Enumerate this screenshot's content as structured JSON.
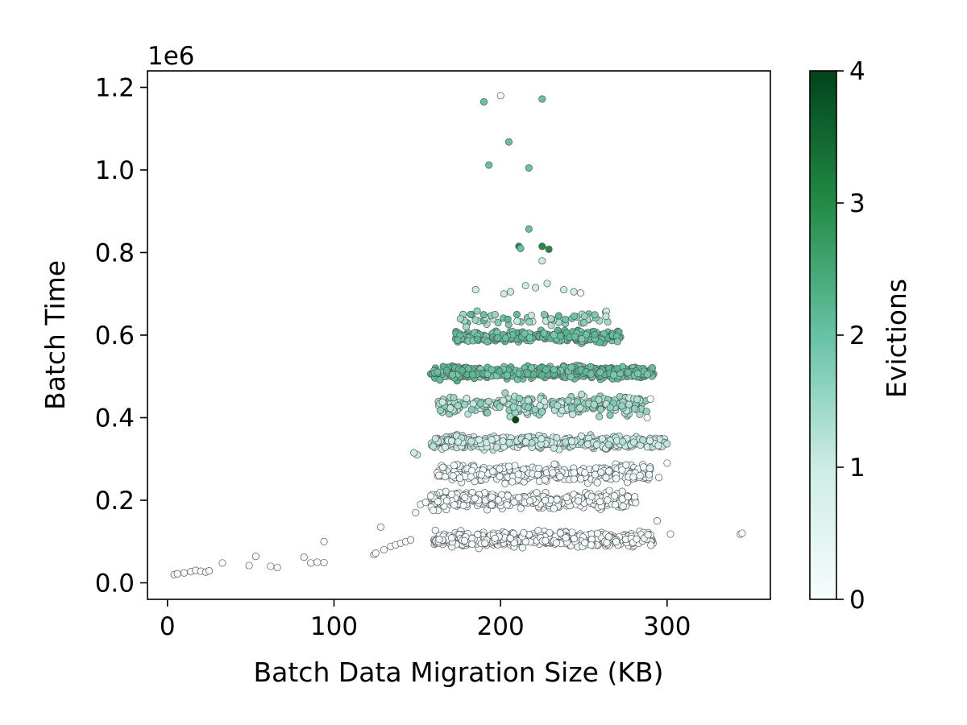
{
  "chart_data": {
    "type": "scatter",
    "title": "",
    "xlabel": "Batch Data Migration Size (KB)",
    "ylabel": "Batch Time",
    "y_offset_label": "1e6",
    "xlim": [
      -12,
      362
    ],
    "ylim": [
      -40000,
      1240000
    ],
    "x_ticks": [
      0,
      100,
      200,
      300
    ],
    "x_tick_labels": [
      "0",
      "100",
      "200",
      "300"
    ],
    "y_ticks": [
      0,
      200000,
      400000,
      600000,
      800000,
      1000000,
      1200000
    ],
    "y_tick_labels": [
      "0.0",
      "0.2",
      "0.4",
      "0.6",
      "0.8",
      "1.0",
      "1.2"
    ],
    "grid": false,
    "colorbar": {
      "label": "Evictions",
      "range": [
        0,
        4
      ],
      "ticks": [
        0,
        1,
        2,
        3,
        4
      ],
      "tick_labels": [
        "0",
        "1",
        "2",
        "3",
        "4"
      ],
      "colors": [
        "#f7fcfd",
        "#ccece6",
        "#66c2a4",
        "#238b45",
        "#00441b"
      ]
    },
    "marker_edge_color": "#555555",
    "point_columns": [
      "x",
      "y",
      "evictions"
    ],
    "points": [
      [
        4,
        20000,
        0
      ],
      [
        6,
        22000,
        0
      ],
      [
        10,
        24000,
        0
      ],
      [
        14,
        27000,
        0
      ],
      [
        17,
        30000,
        0
      ],
      [
        20,
        28000,
        0
      ],
      [
        23,
        26000,
        0
      ],
      [
        25,
        29000,
        0
      ],
      [
        33,
        48000,
        0
      ],
      [
        49,
        42000,
        0
      ],
      [
        53,
        64000,
        0
      ],
      [
        62,
        40000,
        0
      ],
      [
        66,
        37000,
        0
      ],
      [
        82,
        62000,
        0
      ],
      [
        86,
        48000,
        0
      ],
      [
        90,
        50000,
        0
      ],
      [
        94,
        49000,
        0
      ],
      [
        94,
        100000,
        0
      ],
      [
        124,
        68000,
        0
      ],
      [
        125,
        72000,
        0
      ],
      [
        128,
        135000,
        0
      ],
      [
        130,
        80000,
        0
      ],
      [
        134,
        88000,
        0
      ],
      [
        137,
        92000,
        0
      ],
      [
        140,
        96000,
        0
      ],
      [
        143,
        100000,
        0
      ],
      [
        146,
        104000,
        0
      ],
      [
        149,
        170000,
        0
      ],
      [
        152,
        190000,
        0
      ],
      [
        155,
        195000,
        0
      ],
      [
        158,
        210000,
        0
      ],
      [
        150,
        310000,
        1
      ],
      [
        148,
        315000,
        1
      ],
      [
        344,
        118000,
        0
      ],
      [
        345,
        120000,
        0
      ],
      [
        302,
        118000,
        0
      ],
      [
        300,
        290000,
        0
      ],
      [
        295,
        255000,
        0
      ],
      [
        294,
        150000,
        0
      ],
      [
        290,
        445000,
        0
      ],
      [
        288,
        400000,
        0
      ],
      [
        190,
        1165000,
        2
      ],
      [
        200,
        1180000,
        0
      ],
      [
        225,
        1172000,
        2
      ],
      [
        205,
        1068000,
        2
      ],
      [
        193,
        1012000,
        2
      ],
      [
        217,
        1005000,
        2
      ],
      [
        217,
        857000,
        2
      ],
      [
        211,
        815000,
        3
      ],
      [
        212,
        810000,
        2
      ],
      [
        225,
        815000,
        3
      ],
      [
        229,
        808000,
        3
      ],
      [
        225,
        780000,
        1
      ],
      [
        185,
        710000,
        1
      ],
      [
        202,
        700000,
        1
      ],
      [
        206,
        705000,
        1
      ],
      [
        215,
        720000,
        1
      ],
      [
        221,
        715000,
        1
      ],
      [
        228,
        725000,
        1
      ],
      [
        238,
        710000,
        1
      ],
      [
        244,
        705000,
        1
      ],
      [
        248,
        702000,
        0
      ],
      [
        209,
        395000,
        4
      ]
    ],
    "generated_clusters": [
      {
        "x_range": [
          160,
          292
        ],
        "y_center": 105000,
        "y_spread": 25000,
        "count": 520,
        "evictions": [
          0,
          0.2
        ]
      },
      {
        "x_range": [
          158,
          282
        ],
        "y_center": 200000,
        "y_spread": 28000,
        "count": 360,
        "evictions": [
          0,
          0.25
        ]
      },
      {
        "x_range": [
          162,
          290
        ],
        "y_center": 265000,
        "y_spread": 30000,
        "count": 330,
        "evictions": [
          0,
          0.3
        ]
      },
      {
        "x_range": [
          158,
          300
        ],
        "y_center": 340000,
        "y_spread": 22000,
        "count": 420,
        "evictions": [
          0.8,
          1.3
        ]
      },
      {
        "x_range": [
          162,
          288
        ],
        "y_center": 430000,
        "y_spread": 35000,
        "count": 230,
        "evictions": [
          1.0,
          1.8
        ]
      },
      {
        "x_range": [
          158,
          292
        ],
        "y_center": 510000,
        "y_spread": 22000,
        "count": 460,
        "evictions": [
          1.8,
          2.3
        ]
      },
      {
        "x_range": [
          172,
          272
        ],
        "y_center": 597000,
        "y_spread": 20000,
        "count": 260,
        "evictions": [
          1.8,
          2.3
        ]
      },
      {
        "x_range": [
          175,
          265
        ],
        "y_center": 640000,
        "y_spread": 25000,
        "count": 60,
        "evictions": [
          0.9,
          2.2
        ]
      }
    ]
  }
}
